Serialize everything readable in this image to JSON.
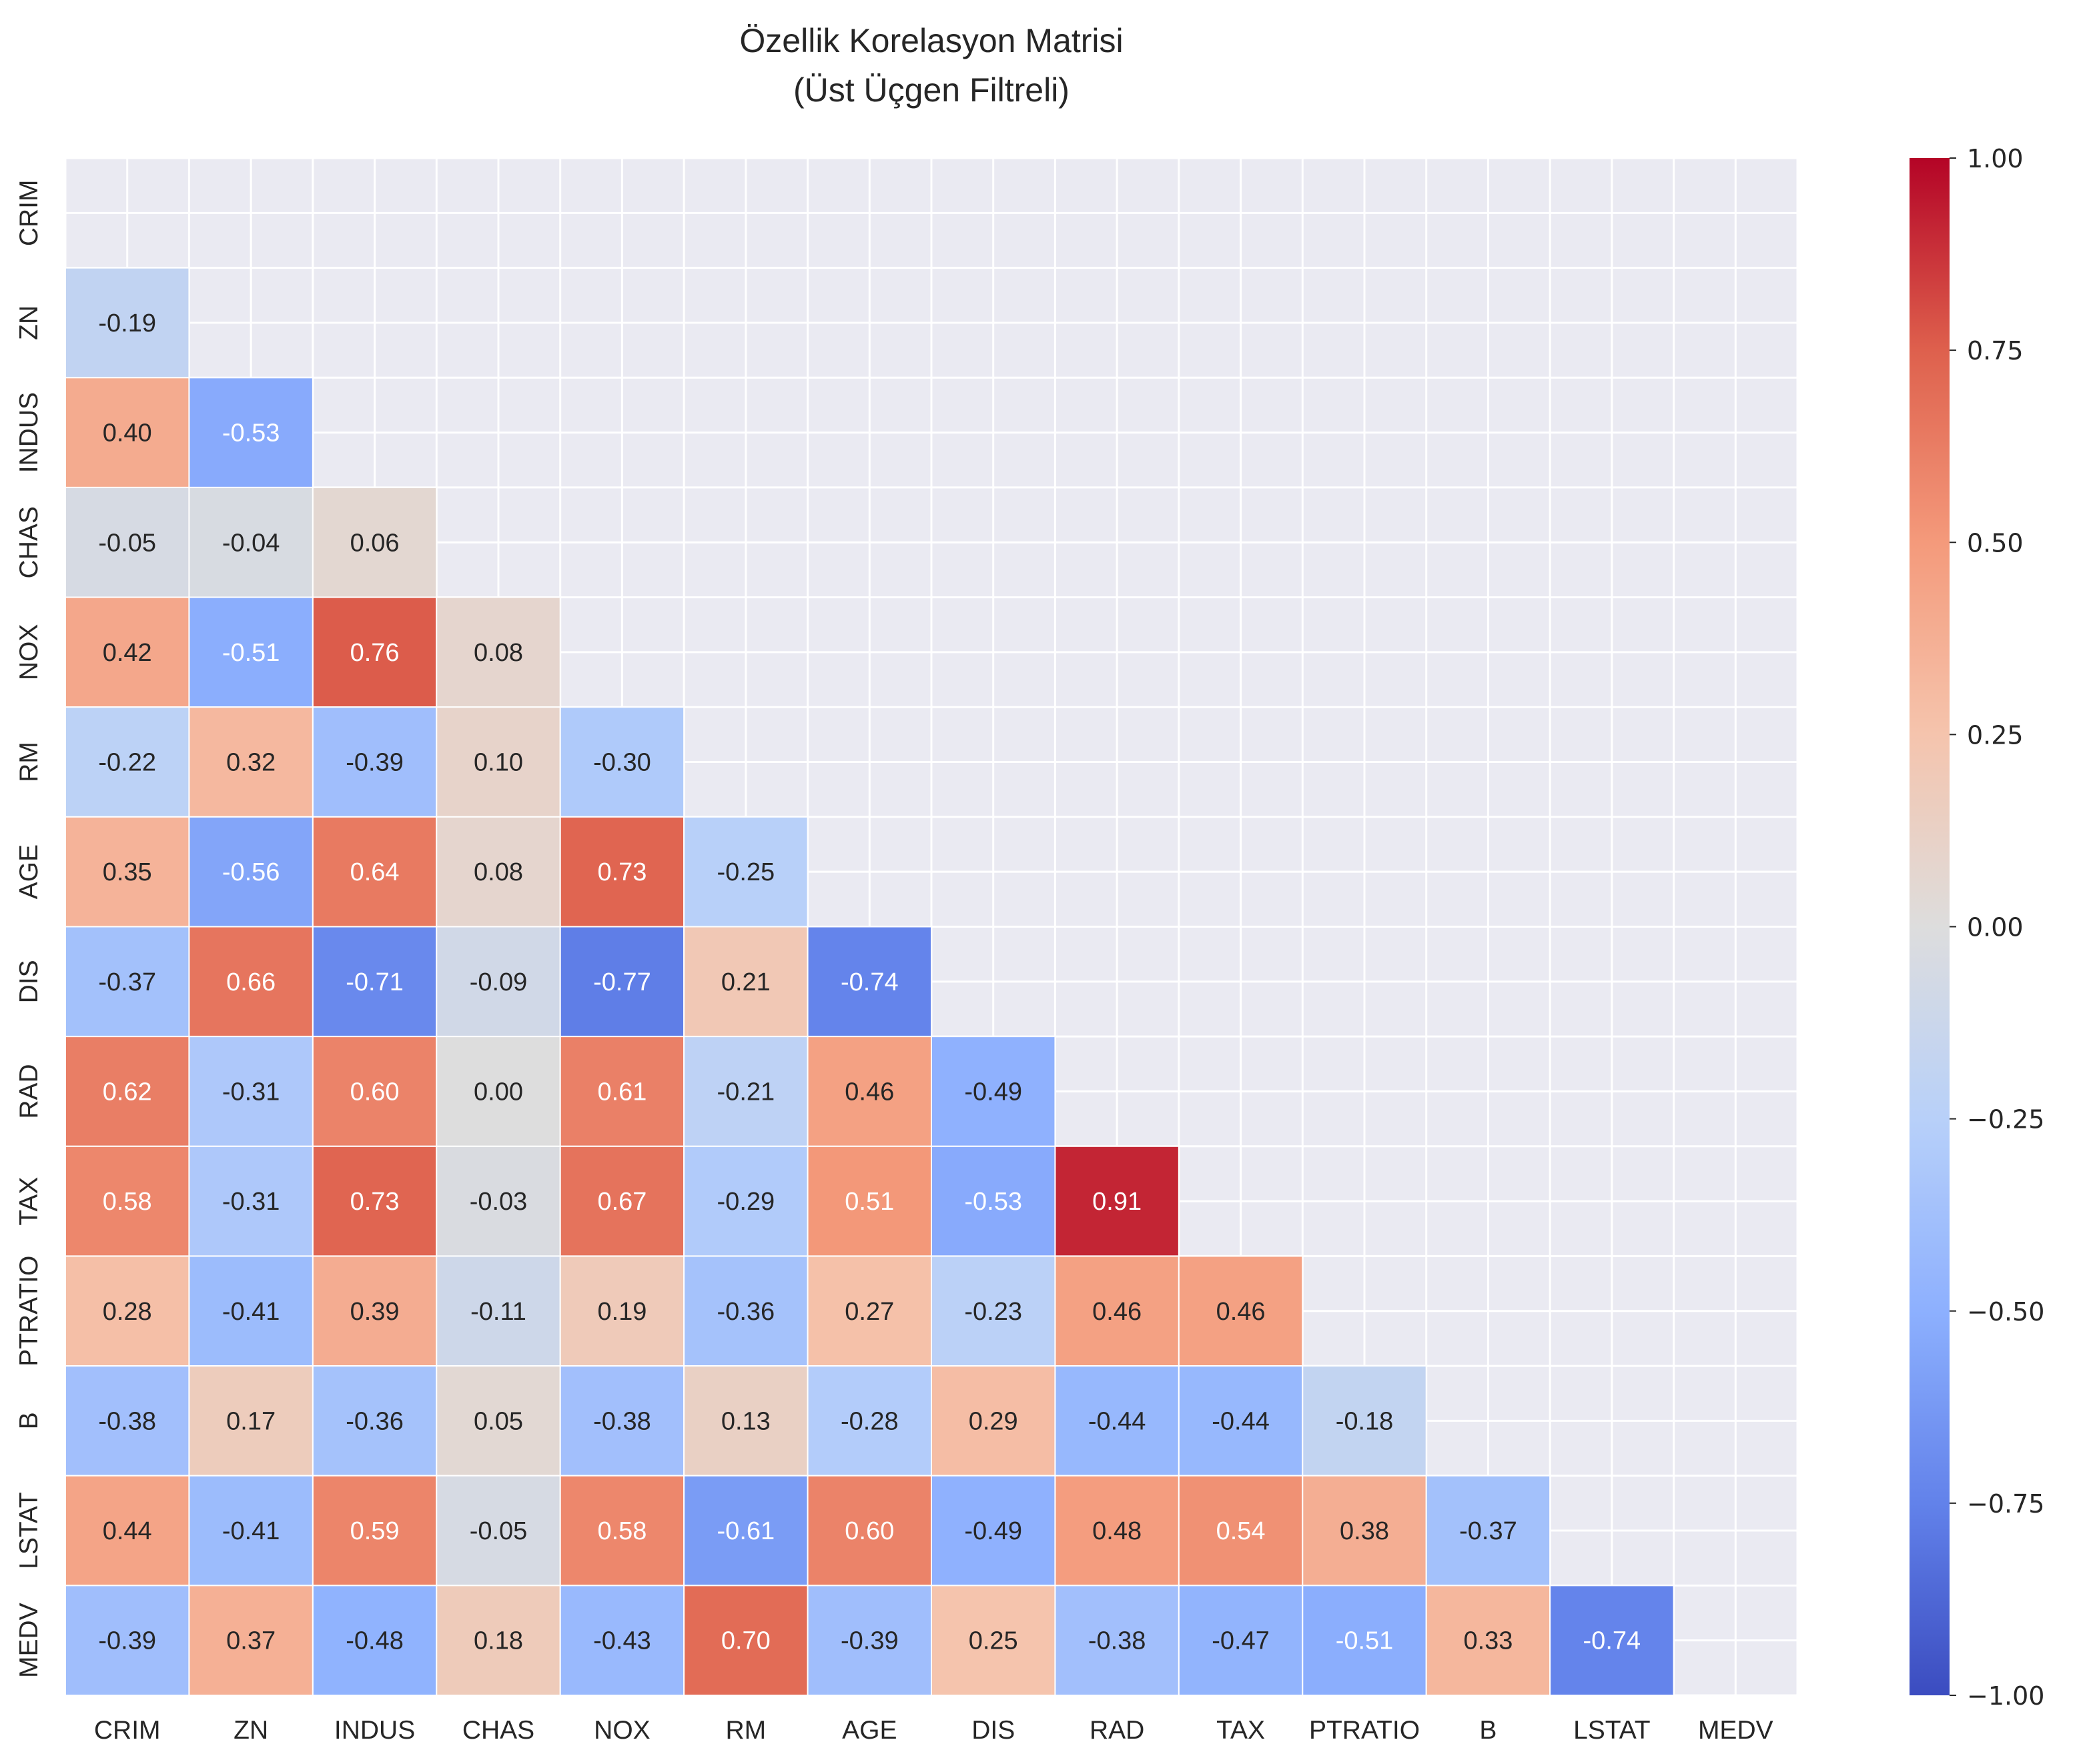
{
  "chart_data": {
    "type": "heatmap",
    "title_line1": "Özellik Korelasyon Matrisi",
    "title_line2": "(Üst Üçgen Filtreli)",
    "xlabel": "",
    "ylabel": "",
    "labels": [
      "CRIM",
      "ZN",
      "INDUS",
      "CHAS",
      "NOX",
      "RM",
      "AGE",
      "DIS",
      "RAD",
      "TAX",
      "PTRATIO",
      "B",
      "LSTAT",
      "MEDV"
    ],
    "mask": "upper-triangle-including-diagonal",
    "colormap": "coolwarm",
    "vmin": -1.0,
    "vmax": 1.0,
    "colorbar_ticks": [
      "1.00",
      "0.75",
      "0.50",
      "0.25",
      "0.00",
      "−0.25",
      "−0.50",
      "−0.75",
      "−1.00"
    ],
    "colorbar_values": [
      1.0,
      0.75,
      0.5,
      0.25,
      0.0,
      -0.25,
      -0.5,
      -0.75,
      -1.0
    ],
    "grid": true,
    "lower_triangle": [
      [],
      [
        -0.19
      ],
      [
        0.4,
        -0.53
      ],
      [
        -0.05,
        -0.04,
        0.06
      ],
      [
        0.42,
        -0.51,
        0.76,
        0.08
      ],
      [
        -0.22,
        0.32,
        -0.39,
        0.1,
        -0.3
      ],
      [
        0.35,
        -0.56,
        0.64,
        0.08,
        0.73,
        -0.25
      ],
      [
        -0.37,
        0.66,
        -0.71,
        -0.09,
        -0.77,
        0.21,
        -0.74
      ],
      [
        0.62,
        -0.31,
        0.6,
        0.0,
        0.61,
        -0.21,
        0.46,
        -0.49
      ],
      [
        0.58,
        -0.31,
        0.73,
        -0.03,
        0.67,
        -0.29,
        0.51,
        -0.53,
        0.91
      ],
      [
        0.28,
        -0.41,
        0.39,
        -0.11,
        0.19,
        -0.36,
        0.27,
        -0.23,
        0.46,
        0.46
      ],
      [
        -0.38,
        0.17,
        -0.36,
        0.05,
        -0.38,
        0.13,
        -0.28,
        0.29,
        -0.44,
        -0.44,
        -0.18
      ],
      [
        0.44,
        -0.41,
        0.59,
        -0.05,
        0.58,
        -0.61,
        0.6,
        -0.49,
        0.48,
        0.54,
        0.38,
        -0.37
      ],
      [
        -0.39,
        0.37,
        -0.48,
        0.18,
        -0.43,
        0.7,
        -0.39,
        0.25,
        -0.38,
        -0.47,
        -0.51,
        0.33,
        -0.74
      ]
    ]
  },
  "colors": {
    "plot_background": "#eaeaf2",
    "grid": "#ffffff",
    "text_dark": "#262626",
    "text_light": "#ffffff"
  }
}
